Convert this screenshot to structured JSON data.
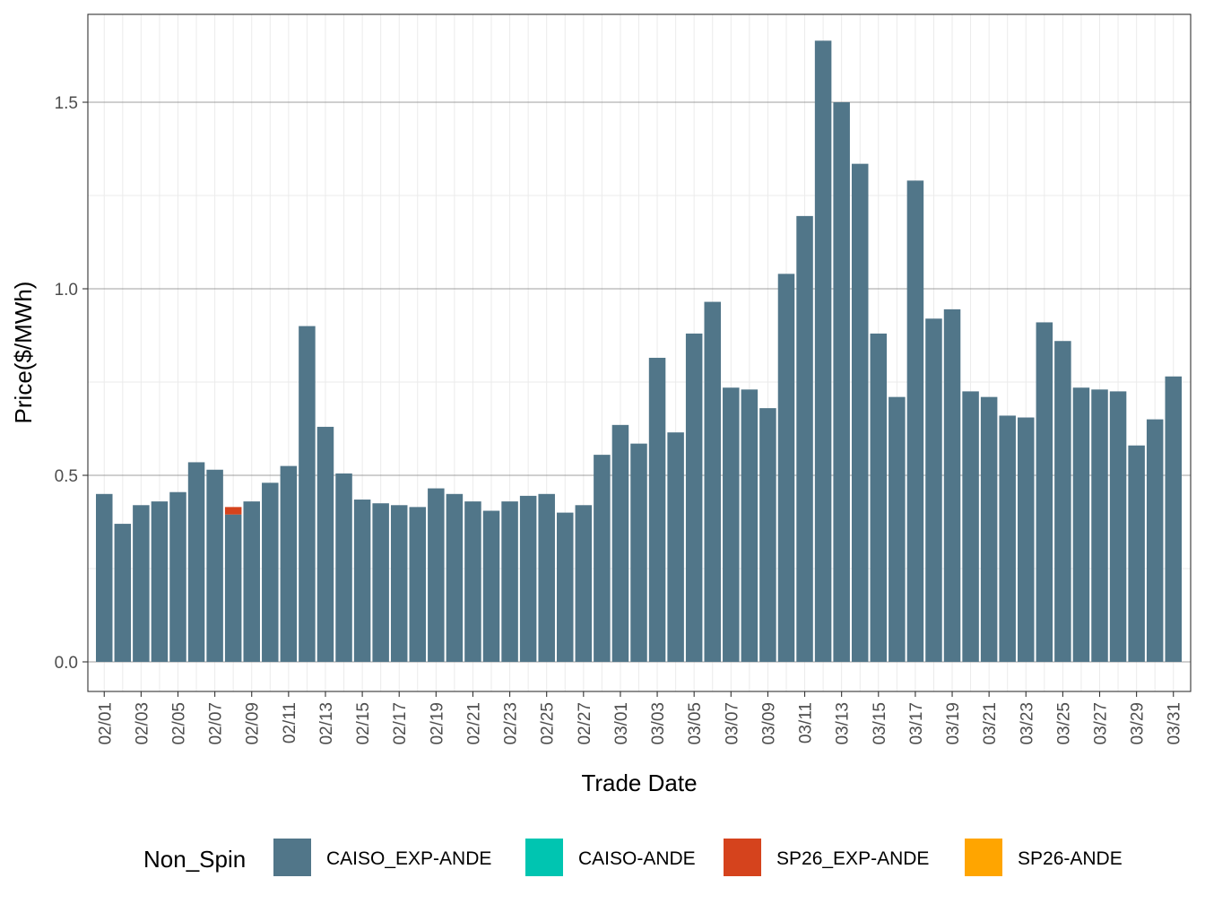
{
  "chart_data": {
    "type": "bar",
    "stacked": true,
    "title": "",
    "xlabel": "Trade Date",
    "ylabel": "Price($/MWh)",
    "ylim": [
      -0.08,
      1.74
    ],
    "yticks": [
      0.0,
      0.5,
      1.0,
      1.5
    ],
    "ytick_labels": [
      "0.0",
      "0.5",
      "1.0",
      "1.5"
    ],
    "grid": true,
    "legend_position": "bottom",
    "legend_title": "Non_Spin",
    "categories": [
      "02/01",
      "02/02",
      "02/03",
      "02/04",
      "02/05",
      "02/06",
      "02/07",
      "02/08",
      "02/09",
      "02/10",
      "02/11",
      "02/12",
      "02/13",
      "02/14",
      "02/15",
      "02/16",
      "02/17",
      "02/18",
      "02/19",
      "02/20",
      "02/21",
      "02/22",
      "02/23",
      "02/24",
      "02/25",
      "02/26",
      "02/27",
      "02/28",
      "03/01",
      "03/02",
      "03/03",
      "03/04",
      "03/05",
      "03/06",
      "03/07",
      "03/08",
      "03/09",
      "03/10",
      "03/11",
      "03/12",
      "03/13",
      "03/14",
      "03/15",
      "03/16",
      "03/17",
      "03/18",
      "03/19",
      "03/20",
      "03/21",
      "03/22",
      "03/23",
      "03/24",
      "03/25",
      "03/26",
      "03/27",
      "03/28",
      "03/29",
      "03/30",
      "03/31"
    ],
    "tick_labels": [
      "02/01",
      "02/03",
      "02/05",
      "02/07",
      "02/09",
      "02/11",
      "02/13",
      "02/15",
      "02/17",
      "02/19",
      "02/21",
      "02/23",
      "02/25",
      "02/27",
      "03/01",
      "03/03",
      "03/05",
      "03/07",
      "03/09",
      "03/11",
      "03/13",
      "03/15",
      "03/17",
      "03/19",
      "03/21",
      "03/23",
      "03/25",
      "03/27",
      "03/29",
      "03/31"
    ],
    "series": [
      {
        "name": "CAISO_EXP-ANDE",
        "color": "#517689",
        "values": [
          0.45,
          0.37,
          0.42,
          0.43,
          0.455,
          0.535,
          0.515,
          0.395,
          0.43,
          0.48,
          0.525,
          0.9,
          0.63,
          0.505,
          0.435,
          0.425,
          0.42,
          0.415,
          0.465,
          0.45,
          0.43,
          0.405,
          0.43,
          0.445,
          0.45,
          0.4,
          0.42,
          0.555,
          0.635,
          0.585,
          0.815,
          0.615,
          0.88,
          0.965,
          0.735,
          0.73,
          0.68,
          1.04,
          1.195,
          1.665,
          1.5,
          1.335,
          0.88,
          0.71,
          1.29,
          0.92,
          0.945,
          0.725,
          0.71,
          0.66,
          0.655,
          0.91,
          0.86,
          0.735,
          0.73,
          0.725,
          0.58,
          0.65,
          0.765
        ]
      },
      {
        "name": "CAISO-ANDE",
        "color": "#00C5B1",
        "values": [
          0,
          0,
          0,
          0,
          0,
          0,
          0,
          0,
          0,
          0,
          0,
          0,
          0,
          0,
          0,
          0,
          0,
          0,
          0,
          0,
          0,
          0,
          0,
          0,
          0,
          0,
          0,
          0,
          0,
          0,
          0,
          0,
          0,
          0,
          0,
          0,
          0,
          0,
          0,
          0,
          0,
          0,
          0,
          0,
          0,
          0,
          0,
          0,
          0,
          0,
          0,
          0,
          0,
          0,
          0,
          0,
          0,
          0,
          0
        ]
      },
      {
        "name": "SP26_EXP-ANDE",
        "color": "#D5431D",
        "values": [
          0,
          0,
          0,
          0,
          0,
          0,
          0,
          0.02,
          0,
          0,
          0,
          0,
          0,
          0,
          0,
          0,
          0,
          0,
          0,
          0,
          0,
          0,
          0,
          0,
          0,
          0,
          0,
          0,
          0,
          0,
          0,
          0,
          0,
          0,
          0,
          0,
          0,
          0,
          0,
          0,
          0,
          0,
          0,
          0,
          0,
          0,
          0,
          0,
          0,
          0,
          0,
          0,
          0,
          0,
          0,
          0,
          0,
          0,
          0
        ]
      },
      {
        "name": "SP26-ANDE",
        "color": "#FFA500",
        "values": [
          0,
          0,
          0,
          0,
          0,
          0,
          0,
          0,
          0,
          0,
          0,
          0,
          0,
          0,
          0,
          0,
          0,
          0,
          0,
          0,
          0,
          0,
          0,
          0,
          0,
          0,
          0,
          0,
          0,
          0,
          0,
          0,
          0,
          0,
          0,
          0,
          0,
          0,
          0,
          0,
          0,
          0,
          0,
          0,
          0,
          0,
          0,
          0,
          0,
          0,
          0,
          0,
          0,
          0,
          0,
          0,
          0,
          0,
          0
        ]
      }
    ]
  }
}
